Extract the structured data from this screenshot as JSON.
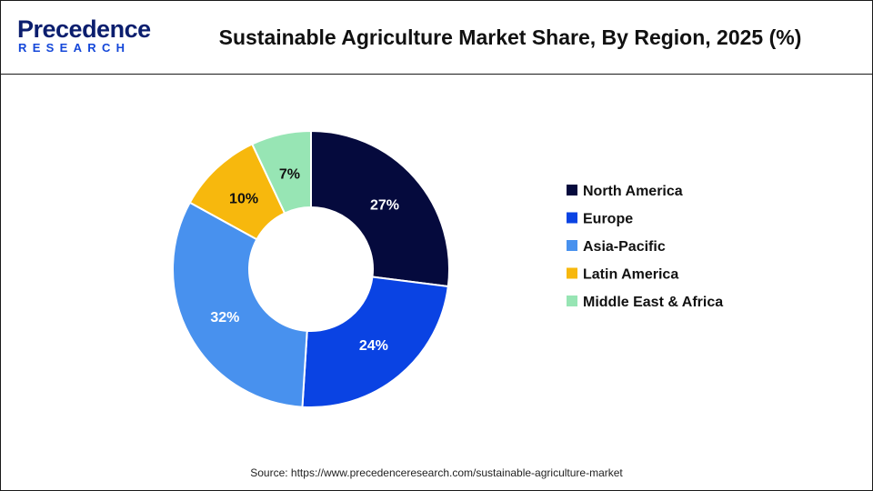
{
  "header": {
    "logo_top": "Precedence",
    "logo_bottom": "RESEARCH"
  },
  "chart_data": {
    "type": "pie",
    "donut": true,
    "title": "Sustainable Agriculture Market Share, By Region, 2025 (%)",
    "categories": [
      "North America",
      "Europe",
      "Asia-Pacific",
      "Latin America",
      "Middle East & Africa"
    ],
    "values": [
      27,
      24,
      32,
      10,
      7
    ],
    "value_labels": [
      "27%",
      "24%",
      "32%",
      "10%",
      "7%"
    ],
    "colors": [
      "#050a3d",
      "#0a43e3",
      "#4891ee",
      "#f7b80d",
      "#97e5b4"
    ],
    "label_colors": [
      "#ffffff",
      "#ffffff",
      "#ffffff",
      "#111111",
      "#111111"
    ],
    "legend_position": "right"
  },
  "footer": {
    "source": "Source: https://www.precedenceresearch.com/sustainable-agriculture-market"
  }
}
